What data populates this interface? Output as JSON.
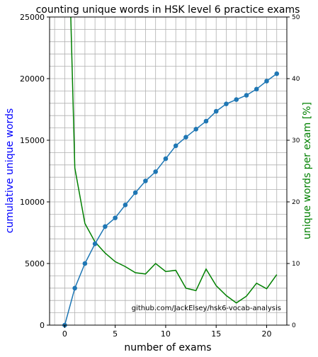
{
  "chart_data": {
    "type": "line",
    "title": "counting unique words in HSK level 6 practice exams",
    "xlabel": "number of exams",
    "ylabel_left": "cumulative unique words",
    "ylabel_right": "unique words per exam [%]",
    "xlim": [
      -1.5,
      22
    ],
    "ylim_left": [
      0,
      25000
    ],
    "ylim_right": [
      0,
      50
    ],
    "x_ticks": [
      0,
      5,
      10,
      15,
      20
    ],
    "y_ticks_left": [
      0,
      5000,
      10000,
      15000,
      20000,
      25000
    ],
    "y_ticks_right": [
      0,
      10,
      20,
      30,
      40,
      50
    ],
    "grid": true,
    "annotation": "github.com/JackElsey/hsk6-vocab-analysis",
    "colors": {
      "cumulative": "#1f77b4",
      "per_exam": "#008000",
      "ylabel_left": "#0000ff",
      "ylabel_right": "#008000",
      "grid": "#b0b0b0"
    },
    "series": [
      {
        "axis": "left",
        "markers": true,
        "x": [
          0,
          1,
          2,
          3,
          4,
          5,
          6,
          7,
          8,
          9,
          10,
          11,
          12,
          13,
          14,
          15,
          16,
          17,
          18,
          19,
          20,
          21
        ],
        "y": [
          0,
          3000,
          5000,
          6600,
          8000,
          8700,
          9750,
          10750,
          11700,
          12450,
          13500,
          14550,
          15250,
          15900,
          16550,
          17350,
          17950,
          18300,
          18650,
          19150,
          19800,
          20400
        ]
      },
      {
        "axis": "right",
        "markers": false,
        "x": [
          0.6,
          1,
          2,
          3,
          4,
          5,
          6,
          7,
          8,
          9,
          10,
          11,
          12,
          13,
          14,
          15,
          16,
          17,
          18,
          19,
          20,
          21
        ],
        "y": [
          50,
          25.5,
          16.5,
          13.5,
          11.7,
          10.3,
          9.5,
          8.5,
          8.3,
          10.0,
          8.7,
          8.9,
          6.0,
          5.6,
          9.1,
          6.4,
          4.8,
          3.6,
          4.7,
          6.8,
          5.9,
          8.2
        ]
      }
    ]
  }
}
